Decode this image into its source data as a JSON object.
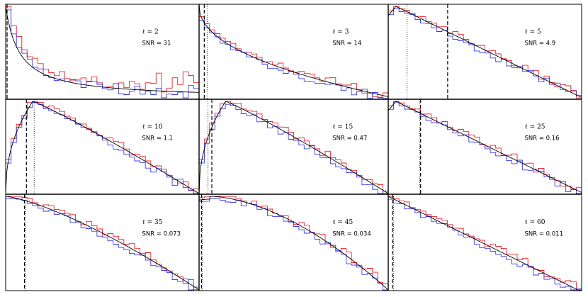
{
  "figure": {
    "rows": 3,
    "cols": 3
  },
  "chart_data": [
    {
      "type": "histogram",
      "ell_label": "ℓ = 2",
      "snr_label": "SNR = 31",
      "ell": 2,
      "snr": 31,
      "curve": "monotone-decay",
      "marker_dashed": 0.0,
      "marker_dotted": 0.0,
      "colors": {
        "red": "#e8202a",
        "blue": "#3b3be8",
        "theory": "#000000"
      }
    },
    {
      "type": "histogram",
      "ell_label": "ℓ = 3",
      "snr_label": "SNR = 14",
      "ell": 3,
      "snr": 14,
      "curve": "decay",
      "marker_dashed": 0.02,
      "marker_dotted": 0.035,
      "colors": {
        "red": "#e8202a",
        "blue": "#3b3be8",
        "theory": "#000000"
      }
    },
    {
      "type": "histogram",
      "ell_label": "ℓ = 5",
      "snr_label": "SNR = 4.9",
      "ell": 5,
      "snr": 4.9,
      "curve": "peak-near-zero",
      "marker_dashed": 0.3,
      "marker_dotted": 0.09,
      "colors": {
        "red": "#e8202a",
        "blue": "#3b3be8",
        "theory": "#000000"
      }
    },
    {
      "type": "histogram",
      "ell_label": "ℓ = 10",
      "snr_label": "SNR = 1.1",
      "ell": 10,
      "snr": 1.1,
      "curve": "peak",
      "marker_dashed": 0.1,
      "marker_dotted": 0.14,
      "colors": {
        "red": "#e8202a",
        "blue": "#3b3be8",
        "theory": "#000000"
      }
    },
    {
      "type": "histogram",
      "ell_label": "ℓ = 15",
      "snr_label": "SNR = 0.47",
      "ell": 15,
      "snr": 0.47,
      "curve": "peak",
      "marker_dashed": 0.06,
      "marker_dotted": 0.04,
      "colors": {
        "red": "#e8202a",
        "blue": "#3b3be8",
        "theory": "#000000"
      }
    },
    {
      "type": "histogram",
      "ell_label": "ℓ = 25",
      "snr_label": "SNR = 0.16",
      "ell": 25,
      "snr": 0.16,
      "curve": "peak-near-zero",
      "marker_dashed": 0.16,
      "marker_dotted": 0.155,
      "colors": {
        "red": "#e8202a",
        "blue": "#3b3be8",
        "theory": "#000000"
      }
    },
    {
      "type": "histogram",
      "ell_label": "ℓ = 35",
      "snr_label": "SNR = 0.073",
      "ell": 35,
      "snr": 0.073,
      "curve": "concave",
      "marker_dashed": 0.09,
      "marker_dotted": 0.095,
      "colors": {
        "red": "#e8202a",
        "blue": "#3b3be8",
        "theory": "#000000"
      }
    },
    {
      "type": "histogram",
      "ell_label": "ℓ = 45",
      "snr_label": "SNR = 0.034",
      "ell": 45,
      "snr": 0.034,
      "curve": "concave-peak",
      "marker_dashed": 0.005,
      "marker_dotted": 0.01,
      "colors": {
        "red": "#e8202a",
        "blue": "#3b3be8",
        "theory": "#000000"
      }
    },
    {
      "type": "histogram",
      "ell_label": "ℓ = 60",
      "snr_label": "SNR = 0.011",
      "ell": 60,
      "snr": 0.011,
      "curve": "linear-decay",
      "marker_dashed": 0.015,
      "marker_dotted": 0.02,
      "colors": {
        "red": "#e8202a",
        "blue": "#3b3be8",
        "theory": "#000000"
      }
    }
  ]
}
